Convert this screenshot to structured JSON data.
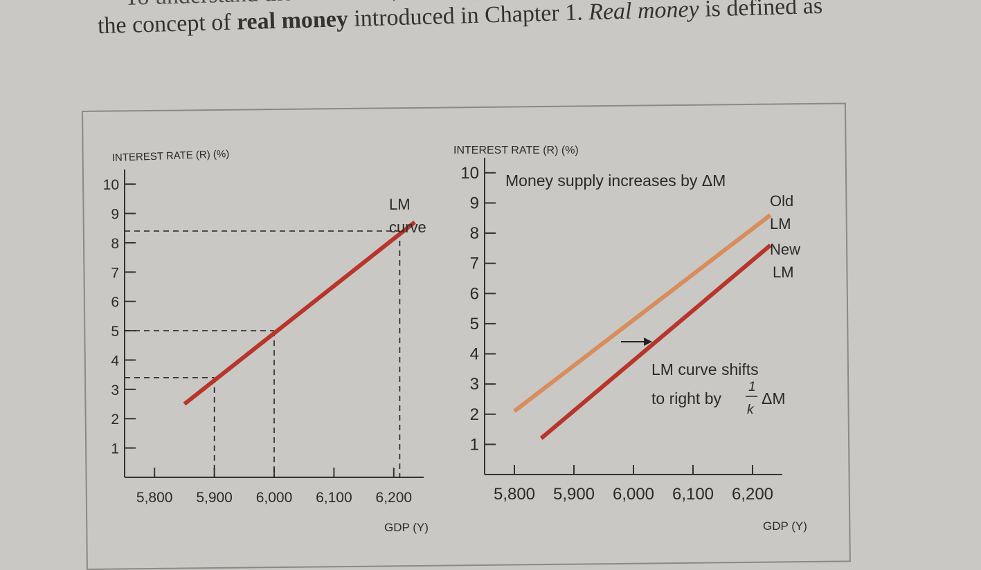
{
  "page": {
    "line1": "To understand the LM curve, it is helpful to recall",
    "line2_pre": "the concept of ",
    "line2_bold": "real money",
    "line2_mid": " introduced in Chapter 1. ",
    "line2_italic": "Real money",
    "line2_post": " is defined as"
  },
  "chart_data": [
    {
      "type": "line",
      "ylabel": "INTEREST RATE (R) (%)",
      "xlabel": "GDP (Y)",
      "y_ticks": [
        "1",
        "2",
        "3",
        "4",
        "5",
        "6",
        "7",
        "8",
        "9",
        "10"
      ],
      "x_ticks": [
        "5,800",
        "5,900",
        "6,000",
        "6,100",
        "6,200"
      ],
      "xlim": [
        5750,
        6250
      ],
      "ylim": [
        0,
        10.5
      ],
      "series": [
        {
          "name": "LM curve",
          "color": "#b8352b",
          "x": [
            5850,
            6235
          ],
          "y": [
            2.5,
            8.7
          ]
        }
      ],
      "series_label": [
        "LM",
        "curve"
      ],
      "reference_points": [
        {
          "x": 5900,
          "y": 3.4
        },
        {
          "x": 6000,
          "y": 5.0
        },
        {
          "x": 6210,
          "y": 8.4
        }
      ]
    },
    {
      "type": "line",
      "ylabel": "INTEREST RATE (R) (%)",
      "xlabel": "GDP (Y)",
      "y_ticks": [
        "1",
        "2",
        "3",
        "4",
        "5",
        "6",
        "7",
        "8",
        "9",
        "10"
      ],
      "x_ticks": [
        "5,800",
        "5,900",
        "6,000",
        "6,100",
        "6,200"
      ],
      "xlim": [
        5750,
        6250
      ],
      "ylim": [
        0,
        10.5
      ],
      "series": [
        {
          "name": "Old LM",
          "color": "#d98c5c",
          "x": [
            5800,
            6230
          ],
          "y": [
            2.1,
            8.6
          ]
        },
        {
          "name": "New LM",
          "color": "#b8352b",
          "x": [
            5845,
            6230
          ],
          "y": [
            1.2,
            7.6
          ]
        }
      ],
      "old_label": [
        "Old",
        "LM"
      ],
      "new_label": [
        "New",
        "LM"
      ],
      "annotation_top": "Money supply increases by ΔM",
      "annotation_shift_1": "LM curve shifts",
      "annotation_shift_2": "to right by",
      "annotation_fraction_num": "1",
      "annotation_fraction_den": "k",
      "annotation_shift_3": "ΔM"
    }
  ]
}
